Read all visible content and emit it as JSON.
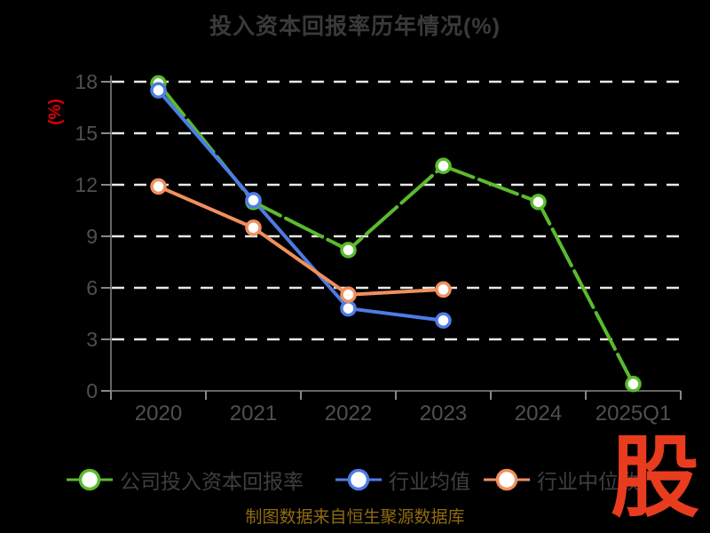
{
  "title": "投入资本回报率历年情况(%)",
  "y_axis_name": "(%)",
  "footer": "制图数据来自恒生聚源数据库",
  "watermark": "股",
  "accent": {
    "y_axis_name_color": "#e00000",
    "footer_color": "#8f6a12",
    "watermark_color": "#e93c1e",
    "gridline_color": "#e8e8e8",
    "axis_color": "#666666",
    "tick_color": "#888888",
    "tick_label_color": "#4f4f4f",
    "legend_text_color": "#3f3f3f",
    "title_color": "#3a3a3a"
  },
  "chart_data": {
    "type": "line",
    "title": "投入资本回报率历年情况(%)",
    "xlabel": "",
    "ylabel": "(%)",
    "categories": [
      "2020",
      "2021",
      "2022",
      "2023",
      "2024",
      "2025Q1"
    ],
    "y_ticks": [
      0,
      3,
      6,
      9,
      12,
      15,
      18
    ],
    "ylim": [
      0,
      18
    ],
    "grid": true,
    "legend_position": "bottom",
    "series": [
      {
        "id": "company-roic",
        "name": "公司投入资本回报率",
        "color": "#5abb2d",
        "line_style": "dashed",
        "marker": "circle-open",
        "values": [
          17.9,
          11.0,
          8.2,
          13.1,
          11.0,
          0.4
        ]
      },
      {
        "id": "industry-mean",
        "name": "行业均值",
        "color": "#4e7ce6",
        "line_style": "solid",
        "marker": "circle-open",
        "values": [
          17.5,
          11.1,
          4.8,
          4.1,
          null,
          null
        ]
      },
      {
        "id": "industry-median",
        "name": "行业中位数",
        "color": "#f0905d",
        "line_style": "solid",
        "marker": "circle-open",
        "values": [
          11.9,
          9.5,
          5.6,
          5.9,
          null,
          null
        ]
      }
    ]
  }
}
